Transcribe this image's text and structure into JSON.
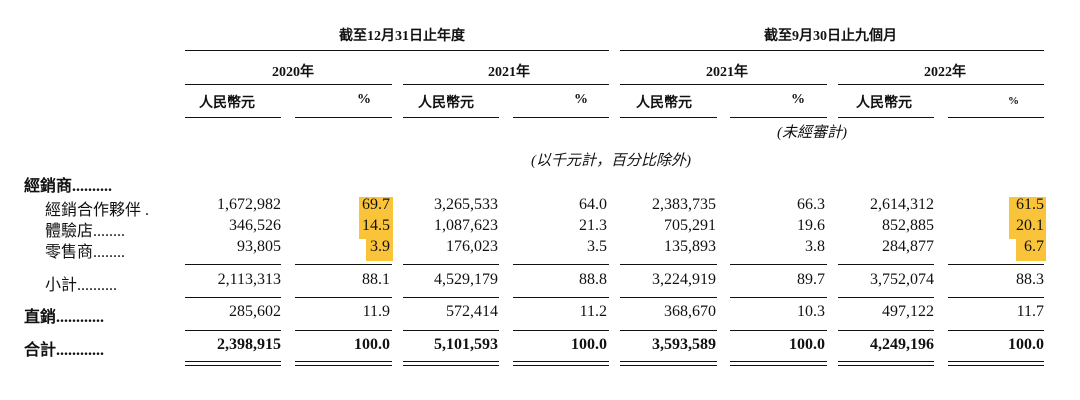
{
  "header": {
    "group_fy": "截至12月31日止年度",
    "group_9m": "截至9月30日止九個月",
    "years": [
      "2020年",
      "2021年",
      "2021年",
      "2022年"
    ],
    "currency": "人民幣元",
    "pct": "%",
    "unaudited": "(未經審計)",
    "unit_note": "(以千元計，百分比除外)"
  },
  "rows": {
    "distributors": {
      "label": "經銷商..........",
      "values": []
    },
    "partners": {
      "label": "經銷合作夥伴 .",
      "values": [
        "1,672,982",
        "69.7",
        "3,265,533",
        "64.0",
        "2,383,735",
        "66.3",
        "2,614,312",
        "61.5"
      ]
    },
    "experience": {
      "label": "體驗店........",
      "values": [
        "346,526",
        "14.5",
        "1,087,623",
        "21.3",
        "705,291",
        "19.6",
        "852,885",
        "20.1"
      ]
    },
    "retailers": {
      "label": "零售商........",
      "values": [
        "93,805",
        "3.9",
        "176,023",
        "3.5",
        "135,893",
        "3.8",
        "284,877",
        "6.7"
      ]
    },
    "subtotal": {
      "label": "小計..........",
      "values": [
        "2,113,313",
        "88.1",
        "4,529,179",
        "88.8",
        "3,224,919",
        "89.7",
        "3,752,074",
        "88.3"
      ]
    },
    "direct": {
      "label": "直銷............",
      "values": [
        "285,602",
        "11.9",
        "572,414",
        "11.2",
        "368,670",
        "10.3",
        "497,122",
        "11.7"
      ]
    },
    "total": {
      "label": "合計............",
      "values": [
        "2,398,915",
        "100.0",
        "5,101,593",
        "100.0",
        "3,593,589",
        "100.0",
        "4,249,196",
        "100.0"
      ]
    }
  },
  "highlight_color": "#f9c43a"
}
